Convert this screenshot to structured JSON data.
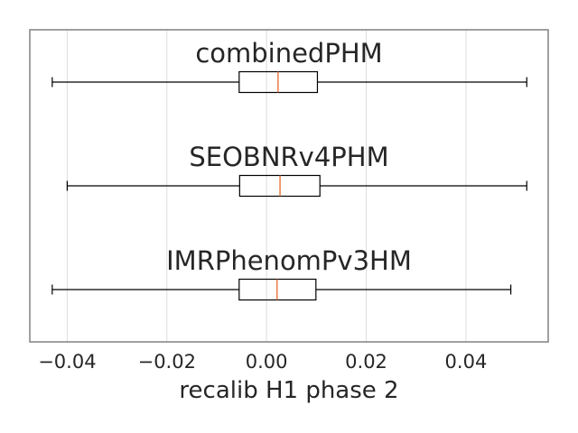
{
  "chart_data": {
    "type": "boxplot",
    "orientation": "horizontal",
    "xlabel": "recalib H1 phase 2",
    "xlim": [
      -0.0475,
      0.0565
    ],
    "xticks": [
      -0.04,
      -0.02,
      0.0,
      0.02,
      0.04
    ],
    "xtick_labels": [
      "−0.04",
      "−0.02",
      "0.00",
      "0.02",
      "0.04"
    ],
    "grid": "vertical",
    "series": [
      {
        "name": "combinedPHM",
        "whisker_low": -0.043,
        "q1": -0.0055,
        "median": 0.0023,
        "q3": 0.0102,
        "whisker_high": 0.0522
      },
      {
        "name": "SEOBNRv4PHM",
        "whisker_low": -0.04,
        "q1": -0.0054,
        "median": 0.0027,
        "q3": 0.0107,
        "whisker_high": 0.0522
      },
      {
        "name": "IMRPhenomPv3HM",
        "whisker_low": -0.043,
        "q1": -0.0055,
        "median": 0.0021,
        "q3": 0.0099,
        "whisker_high": 0.049
      }
    ],
    "colors": {
      "box": "#000000",
      "median": "#e8743b",
      "grid": "#dcdcdc",
      "frame": "#808080",
      "text": "#262626"
    }
  }
}
